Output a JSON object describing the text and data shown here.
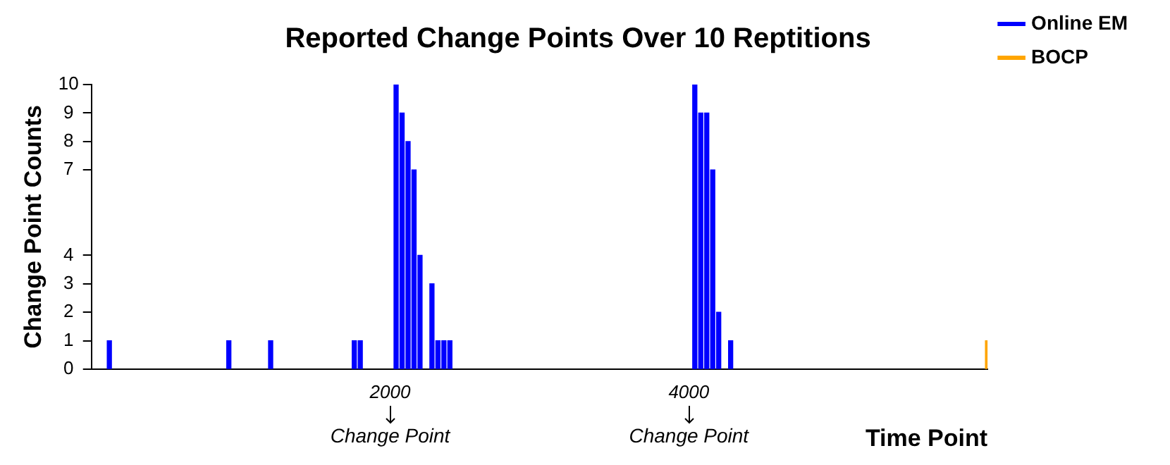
{
  "chart_data": {
    "type": "bar",
    "title": "Reported Change Points Over 10 Reptitions",
    "xlabel": "Time Point",
    "ylabel": "Change Point Counts",
    "series": [
      {
        "name": "Online EM",
        "color": "#0000ff",
        "x": [
          120,
          920,
          1200,
          1760,
          1800,
          2040,
          2080,
          2120,
          2160,
          2200,
          2280,
          2320,
          2360,
          2400,
          4040,
          4080,
          4120,
          4160,
          4200,
          4280
        ],
        "values": [
          1,
          1,
          1,
          1,
          1,
          10,
          9,
          8,
          7,
          4,
          3,
          1,
          1,
          1,
          10,
          9,
          9,
          7,
          2,
          1
        ]
      },
      {
        "name": "BOCP",
        "color": "#ffa500",
        "x": [
          6000
        ],
        "values": [
          1
        ]
      }
    ],
    "xlim": [
      0,
      6000
    ],
    "xticks": [
      2000,
      4000
    ],
    "ylim": [
      0,
      10
    ],
    "yticks": [
      0,
      1,
      2,
      3,
      4,
      7,
      8,
      9,
      10
    ],
    "legend": "top right",
    "grid": false,
    "annotations": [
      {
        "text": "Change Point",
        "x": 2000,
        "y": 0
      },
      {
        "text": "Change Point",
        "x": 4000,
        "y": 0
      }
    ]
  }
}
